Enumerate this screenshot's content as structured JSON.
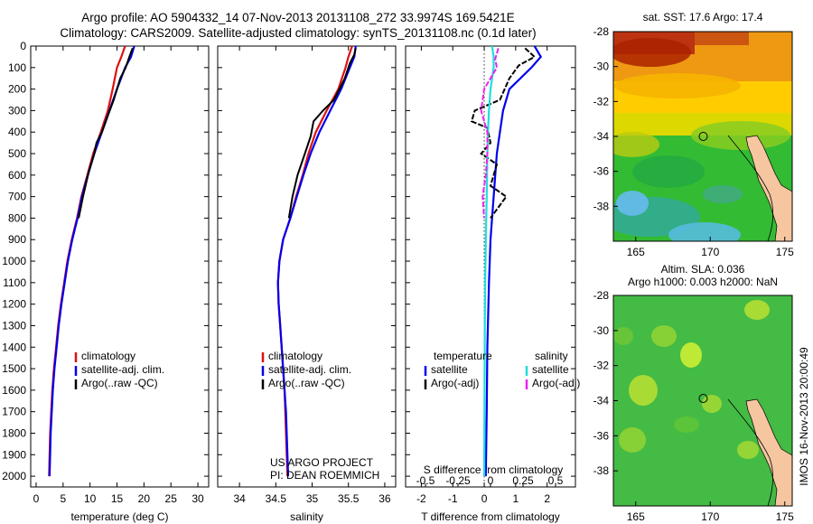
{
  "header": {
    "line1": "Argo profile: AO 5904332_14 07-Nov-2013 20131108_272 33.9974S 169.5421E",
    "line2": "Climatology: CARS2009. Satellite-adjusted climatology: synTS_20131108.nc (0.1d later)"
  },
  "timestamp": "IMOS 16-Nov-2013 20:00:49",
  "colors": {
    "climatology": "#dd1111",
    "satellite": "#0000ee",
    "argo": "#000000",
    "satellite_salinity": "#22dddd",
    "argo_salinity": "#ee22ee",
    "land": "#f5c6a0"
  },
  "chart_data": [
    {
      "id": "temperature",
      "type": "line",
      "xlabel": "temperature (deg C)",
      "ylabel": "",
      "xlim": [
        -1,
        32
      ],
      "ylim": [
        2050,
        0
      ],
      "xticks": [
        0,
        5,
        10,
        15,
        20,
        25,
        30
      ],
      "yticks": [
        0,
        100,
        200,
        300,
        400,
        500,
        600,
        700,
        800,
        900,
        1000,
        1100,
        1200,
        1300,
        1400,
        1500,
        1600,
        1700,
        1800,
        1900,
        2000
      ],
      "legend": {
        "position": "lower-center",
        "entries": [
          "climatology",
          "satellite-adj. clim.",
          "Argo(..raw -QC)"
        ]
      },
      "series": [
        {
          "name": "climatology",
          "color": "#dd1111",
          "points": [
            [
              16.5,
              0
            ],
            [
              15.8,
              50
            ],
            [
              15,
              100
            ],
            [
              14.2,
              200
            ],
            [
              13.3,
              300
            ],
            [
              12,
              400
            ],
            [
              10.6,
              500
            ],
            [
              9.5,
              600
            ],
            [
              8.4,
              700
            ],
            [
              7.6,
              800
            ],
            [
              6.6,
              900
            ],
            [
              5.8,
              1000
            ],
            [
              5.2,
              1100
            ],
            [
              4.6,
              1200
            ],
            [
              4.1,
              1300
            ],
            [
              3.7,
              1400
            ],
            [
              3.3,
              1500
            ],
            [
              3.0,
              1600
            ],
            [
              2.8,
              1700
            ],
            [
              2.6,
              1800
            ],
            [
              2.5,
              1900
            ],
            [
              2.4,
              2000
            ]
          ]
        },
        {
          "name": "satellite-adj. clim.",
          "color": "#0000ee",
          "points": [
            [
              18.2,
              0
            ],
            [
              17.6,
              50
            ],
            [
              16.5,
              100
            ],
            [
              15,
              200
            ],
            [
              13.6,
              300
            ],
            [
              12.2,
              400
            ],
            [
              10.8,
              500
            ],
            [
              9.6,
              600
            ],
            [
              8.5,
              700
            ],
            [
              7.7,
              800
            ],
            [
              6.7,
              900
            ],
            [
              5.9,
              1000
            ],
            [
              5.3,
              1100
            ],
            [
              4.7,
              1200
            ],
            [
              4.2,
              1300
            ],
            [
              3.8,
              1400
            ],
            [
              3.4,
              1500
            ],
            [
              3.1,
              1600
            ],
            [
              2.9,
              1700
            ],
            [
              2.7,
              1800
            ],
            [
              2.6,
              1900
            ],
            [
              2.5,
              2000
            ]
          ]
        },
        {
          "name": "Argo(..raw -QC)",
          "color": "#000000",
          "points": [
            [
              17.9,
              10
            ],
            [
              17.3,
              50
            ],
            [
              16.6,
              100
            ],
            [
              15.6,
              150
            ],
            [
              14.4,
              250
            ],
            [
              13.2,
              330
            ],
            [
              12.2,
              400
            ],
            [
              11.2,
              450
            ],
            [
              10.8,
              500
            ],
            [
              9.8,
              580
            ],
            [
              8.7,
              700
            ],
            [
              7.9,
              800
            ]
          ]
        }
      ]
    },
    {
      "id": "salinity",
      "type": "line",
      "xlabel": "salinity",
      "ylabel": "",
      "xlim": [
        33.7,
        36.15
      ],
      "ylim": [
        2050,
        0
      ],
      "xticks": [
        34,
        34.5,
        35,
        35.5,
        36
      ],
      "legend": {
        "position": "lower-center",
        "entries": [
          "climatology",
          "satellite-adj. clim.",
          "Argo(..raw -QC)"
        ]
      },
      "annotation": [
        "US ARGO PROJECT",
        "PI: DEAN ROEMMICH"
      ],
      "series": [
        {
          "name": "climatology",
          "color": "#dd1111",
          "points": [
            [
              35.55,
              0
            ],
            [
              35.5,
              50
            ],
            [
              35.46,
              100
            ],
            [
              35.36,
              200
            ],
            [
              35.2,
              300
            ],
            [
              35.05,
              400
            ],
            [
              34.95,
              500
            ],
            [
              34.87,
              600
            ],
            [
              34.78,
              700
            ],
            [
              34.7,
              800
            ],
            [
              34.6,
              900
            ],
            [
              34.55,
              1000
            ],
            [
              34.53,
              1100
            ],
            [
              34.54,
              1200
            ],
            [
              34.56,
              1300
            ],
            [
              34.58,
              1400
            ],
            [
              34.6,
              1500
            ],
            [
              34.62,
              1600
            ],
            [
              34.63,
              1700
            ],
            [
              34.64,
              1800
            ],
            [
              34.65,
              1900
            ],
            [
              34.66,
              2000
            ]
          ]
        },
        {
          "name": "satellite-adj. clim.",
          "color": "#0000ee",
          "points": [
            [
              35.6,
              0
            ],
            [
              35.58,
              50
            ],
            [
              35.52,
              100
            ],
            [
              35.4,
              200
            ],
            [
              35.25,
              300
            ],
            [
              35.1,
              400
            ],
            [
              34.98,
              500
            ],
            [
              34.88,
              600
            ],
            [
              34.79,
              700
            ],
            [
              34.7,
              800
            ],
            [
              34.6,
              900
            ],
            [
              34.55,
              1000
            ],
            [
              34.53,
              1100
            ],
            [
              34.54,
              1200
            ],
            [
              34.56,
              1300
            ],
            [
              34.58,
              1400
            ],
            [
              34.6,
              1500
            ],
            [
              34.62,
              1600
            ],
            [
              34.64,
              1700
            ],
            [
              34.65,
              1800
            ],
            [
              34.66,
              1900
            ],
            [
              34.67,
              2000
            ]
          ]
        },
        {
          "name": "Argo(..raw -QC)",
          "color": "#000000",
          "points": [
            [
              35.6,
              10
            ],
            [
              35.58,
              40
            ],
            [
              35.52,
              80
            ],
            [
              35.45,
              150
            ],
            [
              35.3,
              250
            ],
            [
              35.15,
              300
            ],
            [
              35.02,
              350
            ],
            [
              34.98,
              420
            ],
            [
              34.9,
              500
            ],
            [
              34.8,
              600
            ],
            [
              34.73,
              700
            ],
            [
              34.68,
              800
            ]
          ]
        }
      ]
    },
    {
      "id": "differences",
      "type": "line",
      "xlabel": "T difference from climatology",
      "xlabel_top": "S difference from climatology",
      "xlim": [
        -2.5,
        2.9
      ],
      "ylim": [
        2050,
        0
      ],
      "xticks": [
        -2,
        -1,
        0,
        1,
        2
      ],
      "sticks": [
        "-0.5",
        "-0.25",
        "0",
        "0.25",
        "0.5"
      ],
      "legend": {
        "position": "lower-center",
        "groups": [
          {
            "title": "temperature",
            "entries": [
              "satellite",
              "Argo(-adj)"
            ]
          },
          {
            "title": "salinity",
            "entries": [
              "satellite",
              "Argo(-adj)"
            ]
          }
        ]
      },
      "series": [
        {
          "name": "temperature satellite",
          "color": "#0000ee",
          "points": [
            [
              1.6,
              0
            ],
            [
              1.8,
              50
            ],
            [
              1.5,
              100
            ],
            [
              0.8,
              200
            ],
            [
              0.6,
              300
            ],
            [
              0.5,
              400
            ],
            [
              0.4,
              500
            ],
            [
              0.3,
              700
            ],
            [
              0.2,
              900
            ],
            [
              0.15,
              1100
            ],
            [
              0.1,
              1400
            ],
            [
              0.08,
              1700
            ],
            [
              0.05,
              2000
            ]
          ]
        },
        {
          "name": "temperature Argo(-adj)",
          "color": "#000000",
          "points": [
            [
              1.3,
              10
            ],
            [
              1.6,
              50
            ],
            [
              1.1,
              90
            ],
            [
              0.8,
              150
            ],
            [
              0.5,
              250
            ],
            [
              -0.3,
              300
            ],
            [
              -0.4,
              350
            ],
            [
              0.1,
              380
            ],
            [
              0.2,
              450
            ],
            [
              -0.1,
              500
            ],
            [
              0.4,
              550
            ],
            [
              0.2,
              650
            ],
            [
              0.7,
              700
            ],
            [
              0.2,
              800
            ]
          ]
        },
        {
          "name": "salinity satellite",
          "color": "#22dddd",
          "points": [
            [
              0.25,
              0
            ],
            [
              0.3,
              50
            ],
            [
              0.3,
              100
            ],
            [
              0.2,
              200
            ],
            [
              0.15,
              300
            ],
            [
              0.12,
              400
            ],
            [
              0.1,
              500
            ],
            [
              0.08,
              700
            ],
            [
              0.05,
              900
            ],
            [
              0.03,
              1100
            ],
            [
              0.02,
              1300
            ],
            [
              0.01,
              1600
            ],
            [
              0.0,
              2000
            ]
          ]
        },
        {
          "name": "salinity Argo(-adj)",
          "color": "#ee22ee",
          "points": [
            [
              0.45,
              10
            ],
            [
              0.35,
              60
            ],
            [
              0.4,
              100
            ],
            [
              0.0,
              200
            ],
            [
              -0.1,
              300
            ],
            [
              0.1,
              400
            ],
            [
              0.1,
              500
            ],
            [
              0.05,
              600
            ],
            [
              -0.05,
              700
            ],
            [
              0.0,
              800
            ]
          ]
        }
      ]
    },
    {
      "id": "sst-map",
      "type": "heatmap",
      "title": "sat. SST: 17.6 Argo: 17.4",
      "xlim": [
        163.5,
        175.5
      ],
      "ylim": [
        -40,
        -28
      ],
      "xticks": [
        165,
        170,
        175
      ],
      "yticks": [
        -28,
        -30,
        -32,
        -34,
        -36,
        -38
      ],
      "marker": {
        "lon": 169.54,
        "lat": -34.0
      }
    },
    {
      "id": "sla-map",
      "type": "heatmap",
      "title": "Altim. SLA: 0.036",
      "subtitle": "Argo h1000: 0.003 h2000: NaN",
      "xlim": [
        163.5,
        175.5
      ],
      "ylim": [
        -40,
        -28
      ],
      "xticks": [
        165,
        170,
        175
      ],
      "yticks": [
        -28,
        -30,
        -32,
        -34,
        -36,
        -38
      ],
      "marker": {
        "lon": 169.54,
        "lat": -34.0
      }
    }
  ]
}
